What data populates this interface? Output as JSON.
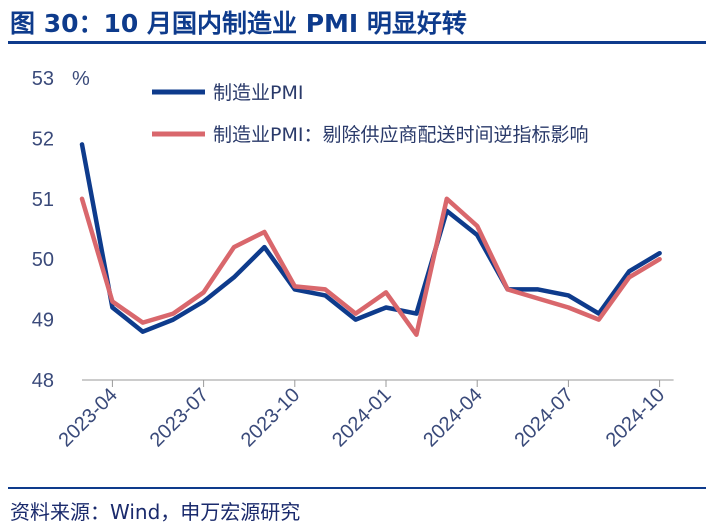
{
  "title": "图 30：10 月国内制造业 PMI 明显好转",
  "source": "资料来源：Wind，申万宏源研究",
  "chart_data": {
    "type": "line",
    "y_unit": "%",
    "ylim": [
      48,
      53
    ],
    "yticks": [
      48,
      49,
      50,
      51,
      52,
      53
    ],
    "x": [
      "2023-03",
      "2023-04",
      "2023-05",
      "2023-06",
      "2023-07",
      "2023-08",
      "2023-09",
      "2023-10",
      "2023-11",
      "2023-12",
      "2024-01",
      "2024-02",
      "2024-03",
      "2024-04",
      "2024-05",
      "2024-06",
      "2024-07",
      "2024-08",
      "2024-09",
      "2024-10"
    ],
    "xtick_labels": [
      "2023-04",
      "2023-07",
      "2023-10",
      "2024-01",
      "2024-04",
      "2024-07",
      "2024-10"
    ],
    "legend_position": "top",
    "grid": false,
    "series": [
      {
        "name": "制造业PMI",
        "color": "#0e3b8c",
        "values": [
          51.9,
          49.2,
          48.8,
          49.0,
          49.3,
          49.7,
          50.2,
          49.5,
          49.4,
          49.0,
          49.2,
          49.1,
          50.8,
          50.4,
          49.5,
          49.5,
          49.4,
          49.1,
          49.8,
          50.1
        ]
      },
      {
        "name": "制造业PMI：剔除供应商配送时间逆指标影响",
        "color": "#d9676c",
        "values": [
          51.0,
          49.3,
          48.95,
          49.1,
          49.45,
          50.2,
          50.45,
          49.55,
          49.5,
          49.1,
          49.45,
          48.75,
          51.0,
          50.55,
          49.5,
          49.35,
          49.2,
          49.0,
          49.7,
          50.0
        ]
      }
    ]
  }
}
